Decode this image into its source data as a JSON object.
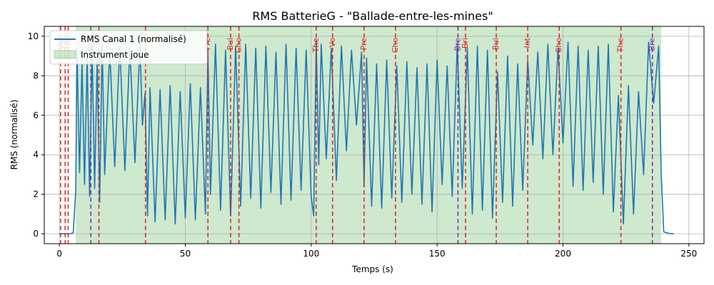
{
  "chart_data": {
    "type": "line",
    "title": "RMS BatterieG - \"Ballade-entre-les-mines\"",
    "xlabel": "Temps (s)",
    "ylabel": "RMS (normalisé)",
    "xlim": [
      -6,
      256
    ],
    "ylim": [
      -0.5,
      10.5
    ],
    "xticks": [
      0,
      50,
      100,
      150,
      200,
      250
    ],
    "yticks": [
      0,
      2,
      4,
      6,
      8,
      10
    ],
    "grid": true,
    "legend_position": "top-left",
    "series": [
      {
        "name": "RMS Canal 1 (normalisé)",
        "color": "#1f77b4",
        "x": [
          0,
          2,
          4,
          5.5,
          6.5,
          7,
          8,
          9,
          10,
          11,
          12,
          13,
          14,
          15,
          16,
          17,
          18,
          20,
          22,
          24,
          26,
          28,
          30,
          32,
          33,
          34,
          35,
          36,
          38,
          40,
          42,
          44,
          46,
          48,
          50,
          52,
          54,
          56,
          58,
          59,
          60,
          62,
          64,
          66,
          68,
          70,
          72,
          74,
          76,
          78,
          80,
          82,
          84,
          86,
          88,
          90,
          92,
          94,
          96,
          98,
          100,
          101,
          102,
          103,
          104,
          106,
          108,
          110,
          112,
          114,
          116,
          118,
          120,
          121,
          122,
          124,
          126,
          128,
          130,
          132,
          134,
          136,
          138,
          140,
          142,
          144,
          146,
          148,
          150,
          152,
          154,
          156,
          158,
          160,
          162,
          164,
          166,
          168,
          170,
          172,
          174,
          176,
          178,
          180,
          182,
          184,
          186,
          188,
          190,
          192,
          194,
          196,
          198,
          200,
          202,
          204,
          206,
          208,
          210,
          212,
          214,
          216,
          218,
          220,
          222,
          224,
          226,
          228,
          230,
          232,
          234,
          236,
          238,
          239,
          240,
          242,
          244
        ],
        "y": [
          0,
          0,
          0,
          0.05,
          2.2,
          9.4,
          3.1,
          8.7,
          2.5,
          8.9,
          1.9,
          9.5,
          2.3,
          8.8,
          1.6,
          9.6,
          3.0,
          9.3,
          3.4,
          9.5,
          3.2,
          9.4,
          3.6,
          9.6,
          5.5,
          7.1,
          0.9,
          7.4,
          0.6,
          7.3,
          0.7,
          7.5,
          0.5,
          7.2,
          0.8,
          7.6,
          0.7,
          7.4,
          1.0,
          9.2,
          2.0,
          9.6,
          1.2,
          9.3,
          0.9,
          9.5,
          1.4,
          9.6,
          1.8,
          9.4,
          1.3,
          9.5,
          2.1,
          9.2,
          1.5,
          9.6,
          1.7,
          9.4,
          2.2,
          9.3,
          1.9,
          0.9,
          9.8,
          3.5,
          9.6,
          3.8,
          9.4,
          2.7,
          9.5,
          4.2,
          9.3,
          5.5,
          9.2,
          2.4,
          8.9,
          1.4,
          8.6,
          1.3,
          8.8,
          1.8,
          8.5,
          1.6,
          8.7,
          2.0,
          8.4,
          1.5,
          8.6,
          1.1,
          8.8,
          2.5,
          8.5,
          1.9,
          9.6,
          2.3,
          9.4,
          1.0,
          9.5,
          1.2,
          9.3,
          0.8,
          8.2,
          1.6,
          9.0,
          1.4,
          8.6,
          2.2,
          8.8,
          4.5,
          9.2,
          3.8,
          9.6,
          4.0,
          9.4,
          4.6,
          9.7,
          2.4,
          9.5,
          2.2,
          9.3,
          2.6,
          9.5,
          2.0,
          9.6,
          1.1,
          7.0,
          0.5,
          7.5,
          1.0,
          7.2,
          3.0,
          9.7,
          6.6,
          9.5,
          3.1,
          0.1,
          0.02,
          0
        ]
      }
    ],
    "shaded_region": {
      "name": "Instrument joue",
      "color": "#2ca02c",
      "x_range": [
        6.5,
        239
      ]
    },
    "section_markers": [
      {
        "x": 0.5,
        "label": "Via",
        "color": "#d62728"
      },
      {
        "x": 2.3,
        "label": "Ga",
        "color": "#d62728"
      },
      {
        "x": 3.5,
        "label": "Ga",
        "color": "#d62728"
      },
      {
        "x": 12.5,
        "label": "Bre",
        "color": "#7b2fa0"
      },
      {
        "x": 15.7,
        "label": "",
        "color": "#d62728"
      },
      {
        "x": 34.2,
        "label": "R",
        "color": "#d62728"
      },
      {
        "x": 59.0,
        "label": "Pre",
        "color": "#d62728"
      },
      {
        "x": 68.0,
        "label": "Bui",
        "color": "#d62728"
      },
      {
        "x": 71.3,
        "label": "Cho",
        "color": "#d62728"
      },
      {
        "x": 102.0,
        "label": "The",
        "color": "#d62728"
      },
      {
        "x": 108.5,
        "label": "Vo",
        "color": "#d62728"
      },
      {
        "x": 121.0,
        "label": "Pre",
        "color": "#d62728"
      },
      {
        "x": 133.5,
        "label": "Cho",
        "color": "#d62728"
      },
      {
        "x": 158.3,
        "label": "Bre",
        "color": "#7b2fa0"
      },
      {
        "x": 161.3,
        "label": "Bri",
        "color": "#d62728"
      },
      {
        "x": 173.5,
        "label": "Bui",
        "color": "#d62728"
      },
      {
        "x": 186.0,
        "label": "Int",
        "color": "#d62728"
      },
      {
        "x": 198.5,
        "label": "Cho",
        "color": "#d62728"
      },
      {
        "x": 223.0,
        "label": "The",
        "color": "#d62728"
      },
      {
        "x": 235.5,
        "label": "Bre",
        "color": "#7b2fa0"
      }
    ]
  }
}
